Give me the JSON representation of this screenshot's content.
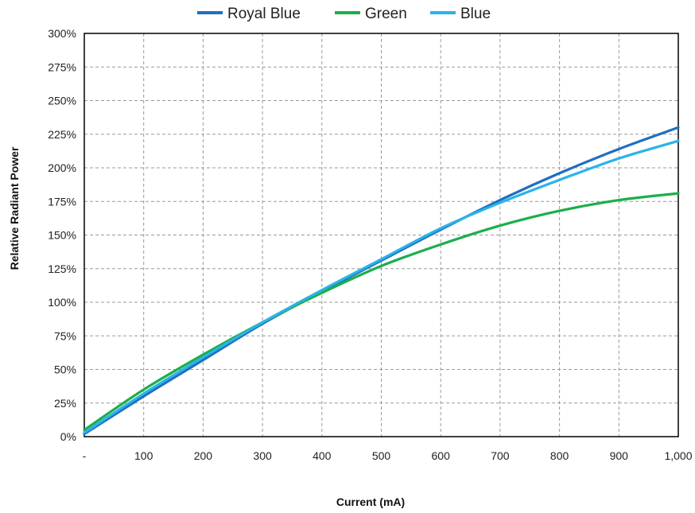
{
  "chart_data": {
    "type": "line",
    "xlabel": "Current (mA)",
    "ylabel": "Relative Radiant Power",
    "xlim": [
      0,
      1000
    ],
    "ylim": [
      0,
      300
    ],
    "x_ticks": [
      0,
      100,
      200,
      300,
      400,
      500,
      600,
      700,
      800,
      900,
      1000
    ],
    "x_tick_labels": [
      "-",
      "100",
      "200",
      "300",
      "400",
      "500",
      "600",
      "700",
      "800",
      "900",
      "1,000"
    ],
    "y_ticks": [
      0,
      25,
      50,
      75,
      100,
      125,
      150,
      175,
      200,
      225,
      250,
      275,
      300
    ],
    "y_tick_labels": [
      "0%",
      "25%",
      "50%",
      "75%",
      "100%",
      "125%",
      "150%",
      "175%",
      "200%",
      "225%",
      "250%",
      "275%",
      "300%"
    ],
    "grid": true,
    "legend_position": "top-center",
    "series": [
      {
        "name": "Royal Blue",
        "color": "#1f6fbf",
        "x": [
          0,
          100,
          200,
          300,
          400,
          500,
          600,
          700,
          800,
          900,
          1000
        ],
        "y": [
          2,
          30,
          57,
          84,
          108,
          131,
          154,
          176,
          196,
          214,
          230
        ]
      },
      {
        "name": "Green",
        "color": "#1aaf4b",
        "x": [
          0,
          100,
          200,
          300,
          400,
          500,
          600,
          700,
          800,
          900,
          1000
        ],
        "y": [
          5,
          35,
          61,
          85,
          107,
          127,
          143,
          157,
          168,
          176,
          181
        ]
      },
      {
        "name": "Blue",
        "color": "#2ab3e8",
        "x": [
          0,
          100,
          200,
          300,
          400,
          500,
          600,
          700,
          800,
          900,
          1000
        ],
        "y": [
          3,
          32,
          59,
          85,
          109,
          132,
          155,
          174,
          191,
          207,
          220
        ]
      }
    ]
  }
}
